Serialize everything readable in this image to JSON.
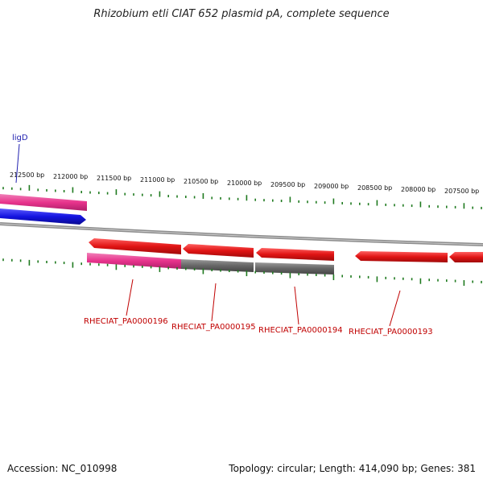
{
  "title": "Rhizobium etli CIAT 652 plasmid pA, complete sequence",
  "accession": "Accession: NC_010998",
  "topology": "Topology: circular; Length: 414,090 bp; Genes: 381",
  "colors": {
    "tick": "#1f7a1f",
    "backbone": "#8c8c8c",
    "forward_gene": "#1414e0",
    "reverse_gene": "#e01414",
    "category_pink": "#e8338c",
    "category_gray": "#666666",
    "label_blue": "#2020b0",
    "label_red": "#c00000"
  },
  "scale_labels": [
    "212500 bp",
    "212000 bp",
    "211500 bp",
    "211000 bp",
    "210500 bp",
    "210000 bp",
    "209500 bp",
    "209000 bp",
    "208500 bp",
    "208000 bp",
    "207500 bp"
  ],
  "gene_labels": [
    {
      "text": "ligD",
      "color": "#2020b0"
    },
    {
      "text": "RHECIAT_PA0000196",
      "color": "#c00000"
    },
    {
      "text": "RHECIAT_PA0000195",
      "color": "#c00000"
    },
    {
      "text": "RHECIAT_PA0000194",
      "color": "#c00000"
    },
    {
      "text": "RHECIAT_PA0000193",
      "color": "#c00000"
    }
  ]
}
